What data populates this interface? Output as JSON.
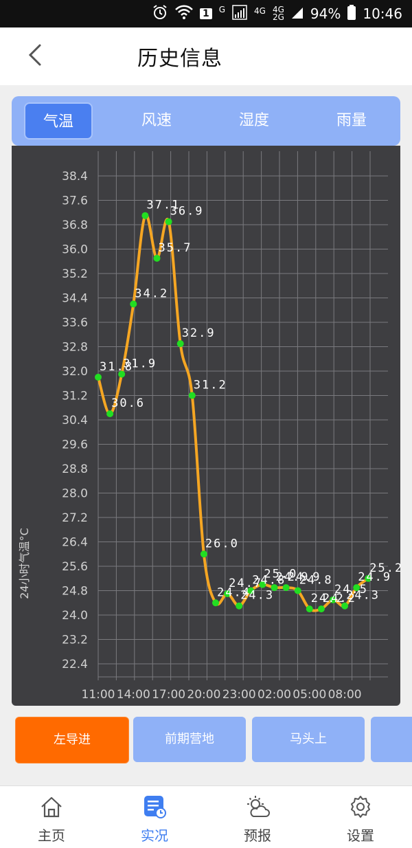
{
  "status_bar": {
    "alarm_icon": "alarm-clock-icon",
    "wifi_icon": "wifi-icon",
    "badge_number": "1",
    "signal_g": "G",
    "net_4g_1": "4G",
    "net_4g_2": "4G",
    "net_2g": "2G",
    "battery_percent": "94%",
    "time": "10:46"
  },
  "header": {
    "back_icon": "chevron-left-icon",
    "title": "历史信息"
  },
  "tabs": [
    {
      "label": "气温",
      "active": true
    },
    {
      "label": "风速",
      "active": false
    },
    {
      "label": "湿度",
      "active": false
    },
    {
      "label": "雨量",
      "active": false
    }
  ],
  "chart_data": {
    "type": "line",
    "ylabel": "24小时气温°C",
    "x": [
      "11:00",
      "12:00",
      "13:00",
      "14:00",
      "15:00",
      "16:00",
      "17:00",
      "18:00",
      "19:00",
      "20:00",
      "21:00",
      "22:00",
      "23:00",
      "00:00",
      "01:00",
      "02:00",
      "03:00",
      "04:00",
      "05:00",
      "06:00",
      "07:00",
      "08:00",
      "09:00",
      "10:00"
    ],
    "x_ticks": [
      "11:00",
      "14:00",
      "17:00",
      "20:00",
      "23:00",
      "02:00",
      "05:00",
      "08:00"
    ],
    "y_ticks": [
      "38.4",
      "37.6",
      "36.8",
      "36.0",
      "35.2",
      "34.4",
      "33.6",
      "32.8",
      "32.0",
      "31.2",
      "30.4",
      "29.6",
      "28.8",
      "28.0",
      "27.2",
      "26.4",
      "25.6",
      "24.8",
      "24.0",
      "23.2",
      "22.4"
    ],
    "ylim": [
      21.6,
      39.2
    ],
    "series": [
      {
        "values": [
          31.8,
          30.6,
          31.9,
          34.2,
          37.1,
          35.7,
          36.9,
          32.9,
          31.2,
          26.0,
          24.4,
          24.7,
          24.3,
          24.8,
          25.0,
          24.9,
          24.9,
          24.8,
          24.2,
          24.2,
          24.5,
          24.3,
          24.9,
          25.2
        ],
        "labels": [
          "31.8",
          "30.6",
          "31.9",
          "34.2",
          "37.1",
          "35.7",
          "36.9",
          "32.9",
          "31.2",
          "26.0",
          "24.4",
          "24.7",
          "24.3",
          "24.8",
          "25.0",
          "24.9",
          "24.9",
          "24.8",
          "24.2",
          "24.2",
          "24.5",
          "24.3",
          "24.9",
          "25.2"
        ],
        "line_color": "#f5a623",
        "point_color": "#22dd22"
      }
    ],
    "grid": true
  },
  "stations": [
    {
      "label": "左导进",
      "active": true
    },
    {
      "label": "前期营地",
      "active": false
    },
    {
      "label": "马头上",
      "active": false
    },
    {
      "label": "",
      "active": false
    }
  ],
  "bottom_nav": [
    {
      "label": "主页",
      "icon": "home-icon",
      "active": false
    },
    {
      "label": "实况",
      "icon": "live-report-icon",
      "active": true
    },
    {
      "label": "预报",
      "icon": "weather-forecast-icon",
      "active": false
    },
    {
      "label": "设置",
      "icon": "gear-icon",
      "active": false
    }
  ],
  "colors": {
    "accent": "#4a7ff0",
    "tab_bar": "#8fb1f7",
    "station_active": "#ff6a00",
    "chart_bg": "#3e3e41"
  }
}
